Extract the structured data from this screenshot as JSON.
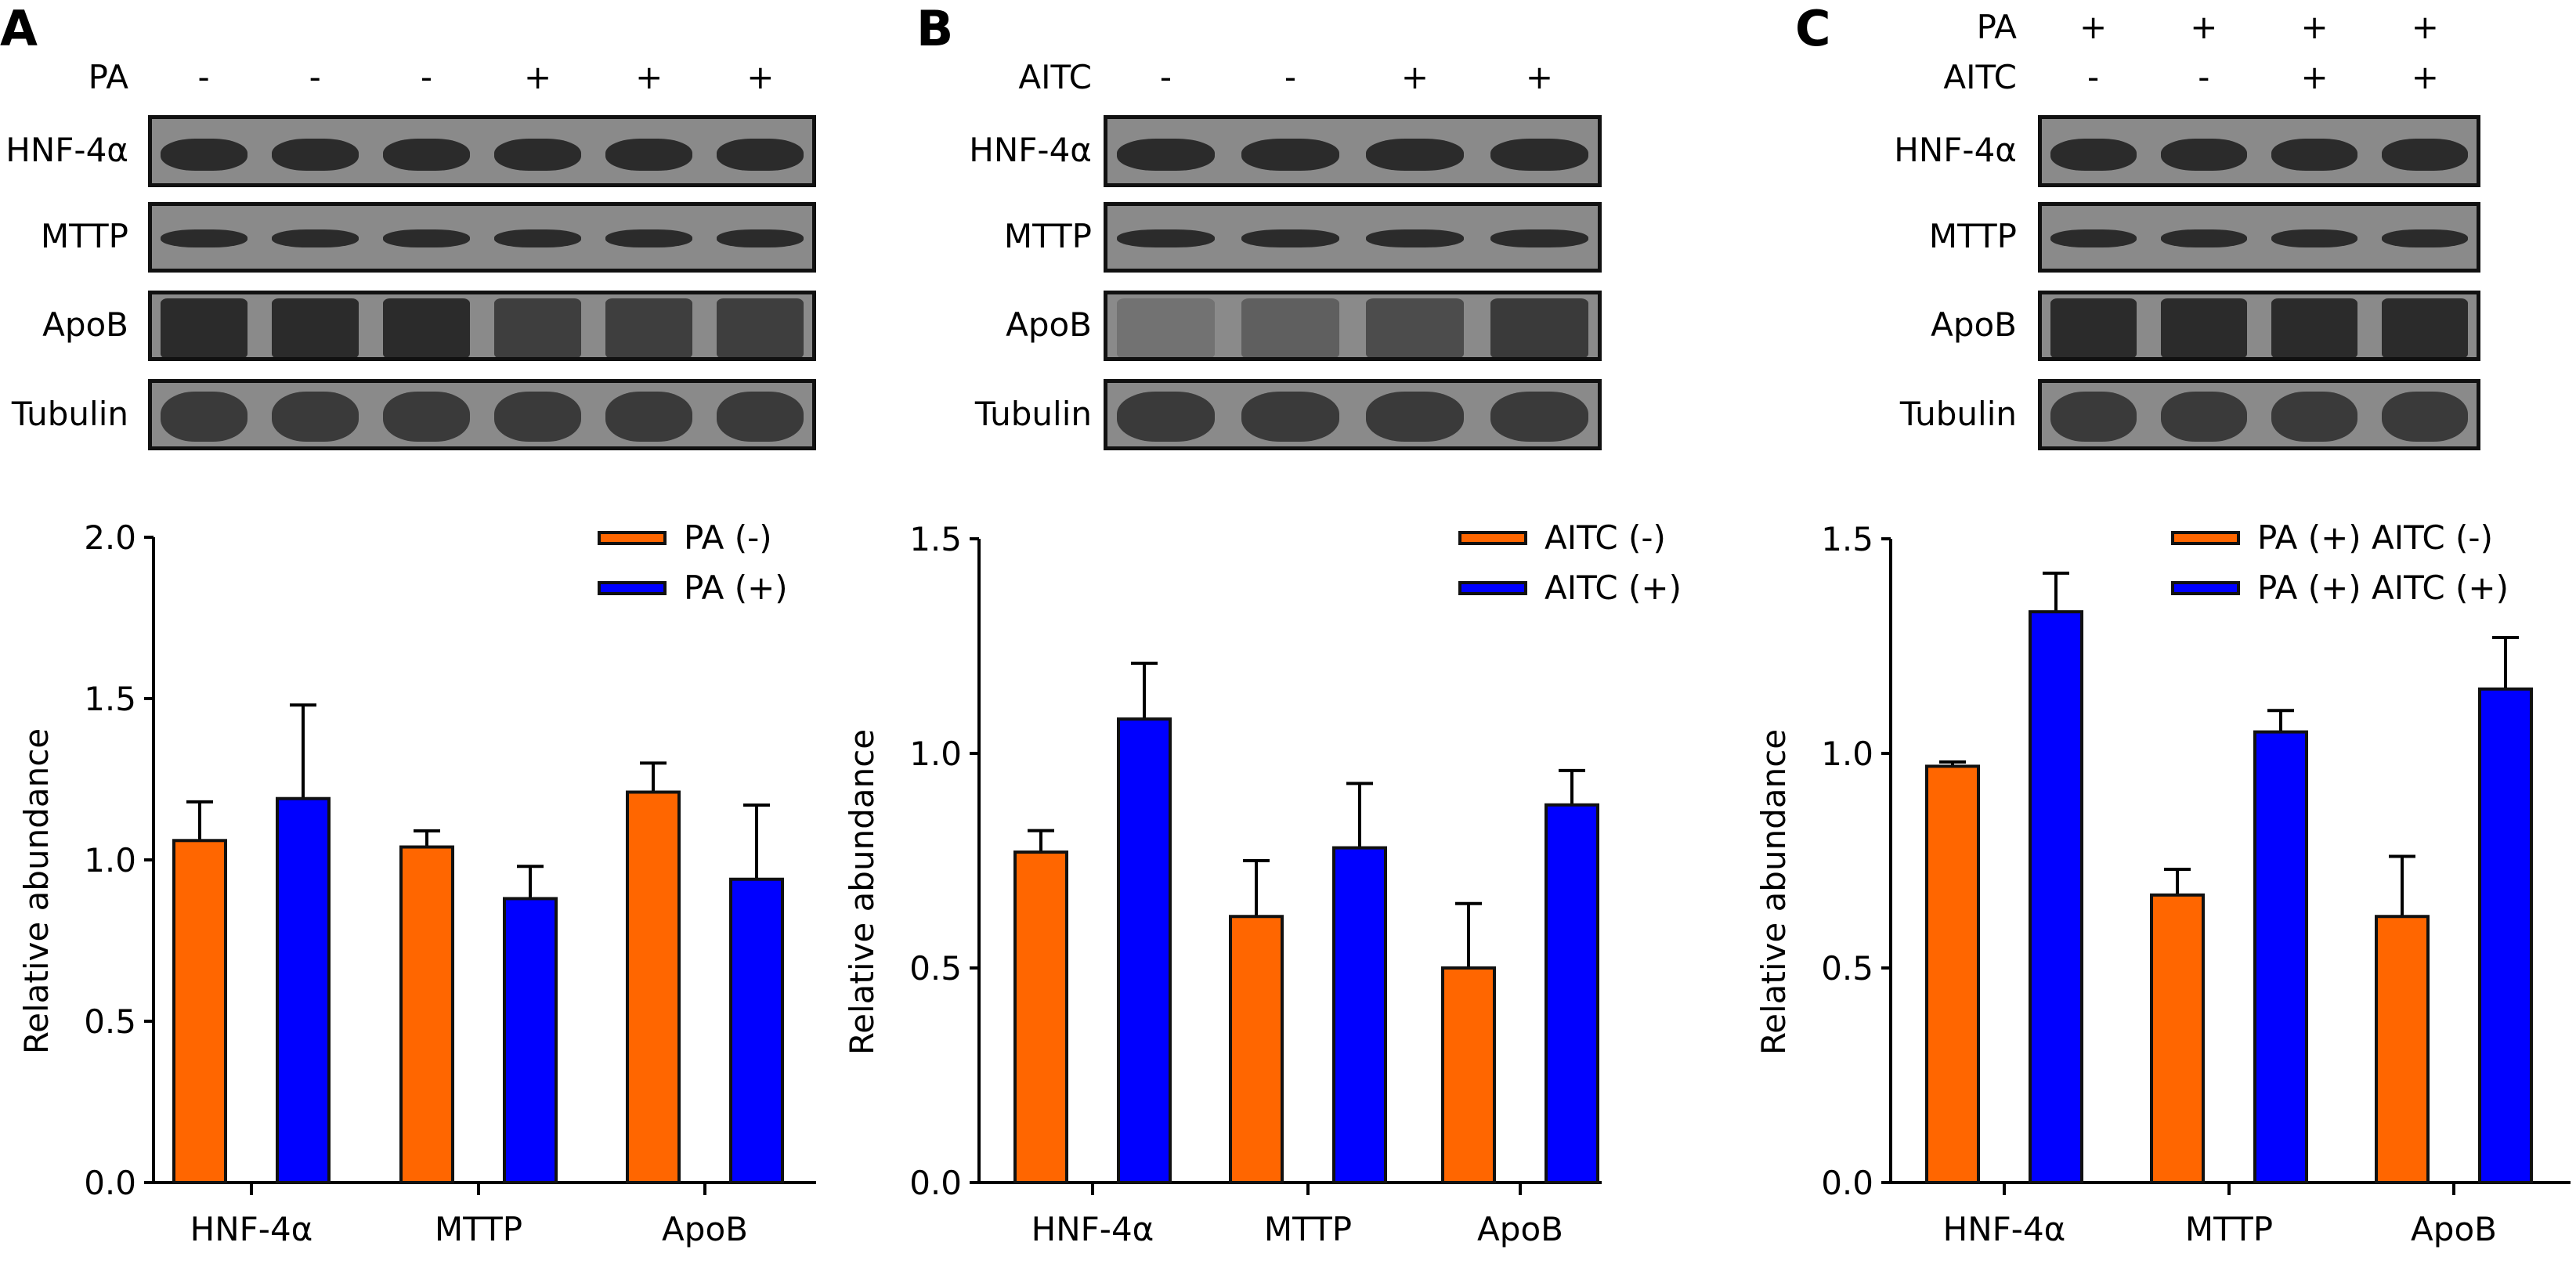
{
  "panels": [
    {
      "letter": "A",
      "conditions": [
        {
          "name": "PA",
          "lanes": [
            "-",
            "-",
            "-",
            "+",
            "+",
            "+"
          ]
        }
      ],
      "blot_rows": [
        "HNF-4α",
        "MTTP",
        "ApoB",
        "Tubulin"
      ]
    },
    {
      "letter": "B",
      "conditions": [
        {
          "name": "AITC",
          "lanes": [
            "-",
            "-",
            "+",
            "+"
          ]
        }
      ],
      "blot_rows": [
        "HNF-4α",
        "MTTP",
        "ApoB",
        "Tubulin"
      ]
    },
    {
      "letter": "C",
      "conditions": [
        {
          "name": "PA",
          "lanes": [
            "+",
            "+",
            "+",
            "+"
          ]
        },
        {
          "name": "AITC",
          "lanes": [
            "-",
            "-",
            "+",
            "+"
          ]
        }
      ],
      "blot_rows": [
        "HNF-4α",
        "MTTP",
        "ApoB",
        "Tubulin"
      ]
    }
  ],
  "colors": {
    "orange": "#ff6600",
    "blue": "#0000ff",
    "blot_bg": "#8a8a8a",
    "band": "#2b2b2b"
  },
  "chart_data": [
    {
      "type": "bar",
      "panel": "A",
      "title": "",
      "xlabel": "",
      "ylabel": "Relative abundance",
      "categories": [
        "HNF-4α",
        "MTTP",
        "ApoB"
      ],
      "ylim": [
        0,
        2.0
      ],
      "yticks": [
        "0.0",
        "0.5",
        "1.0",
        "1.5",
        "2.0"
      ],
      "legend_position": "top-right",
      "grid": false,
      "series": [
        {
          "name": "PA (-)",
          "color": "#ff6600",
          "values": [
            1.06,
            1.04,
            1.21
          ],
          "errors": [
            0.12,
            0.05,
            0.09
          ]
        },
        {
          "name": "PA (+)",
          "color": "#0000ff",
          "values": [
            1.19,
            0.88,
            0.94
          ],
          "errors": [
            0.29,
            0.1,
            0.23
          ]
        }
      ]
    },
    {
      "type": "bar",
      "panel": "B",
      "title": "",
      "xlabel": "",
      "ylabel": "Relative abundance",
      "categories": [
        "HNF-4α",
        "MTTP",
        "ApoB"
      ],
      "ylim": [
        0,
        1.5
      ],
      "yticks": [
        "0.0",
        "0.5",
        "1.0",
        "1.5"
      ],
      "legend_position": "top-right",
      "grid": false,
      "series": [
        {
          "name": "AITC (-)",
          "color": "#ff6600",
          "values": [
            0.77,
            0.62,
            0.5
          ],
          "errors": [
            0.05,
            0.13,
            0.15
          ]
        },
        {
          "name": "AITC (+)",
          "color": "#0000ff",
          "values": [
            1.08,
            0.78,
            0.88
          ],
          "errors": [
            0.13,
            0.15,
            0.08
          ]
        }
      ]
    },
    {
      "type": "bar",
      "panel": "C",
      "title": "",
      "xlabel": "",
      "ylabel": "Relative abundance",
      "categories": [
        "HNF-4α",
        "MTTP",
        "ApoB"
      ],
      "ylim": [
        0,
        1.5
      ],
      "yticks": [
        "0.0",
        "0.5",
        "1.0",
        "1.5"
      ],
      "legend_position": "top-right",
      "grid": false,
      "series": [
        {
          "name": "PA (+) AITC (-)",
          "color": "#ff6600",
          "values": [
            0.97,
            0.67,
            0.62
          ],
          "errors": [
            0.01,
            0.06,
            0.14
          ]
        },
        {
          "name": "PA (+) AITC (+)",
          "color": "#0000ff",
          "values": [
            1.33,
            1.05,
            1.15
          ],
          "errors": [
            0.09,
            0.05,
            0.12
          ]
        }
      ]
    }
  ]
}
